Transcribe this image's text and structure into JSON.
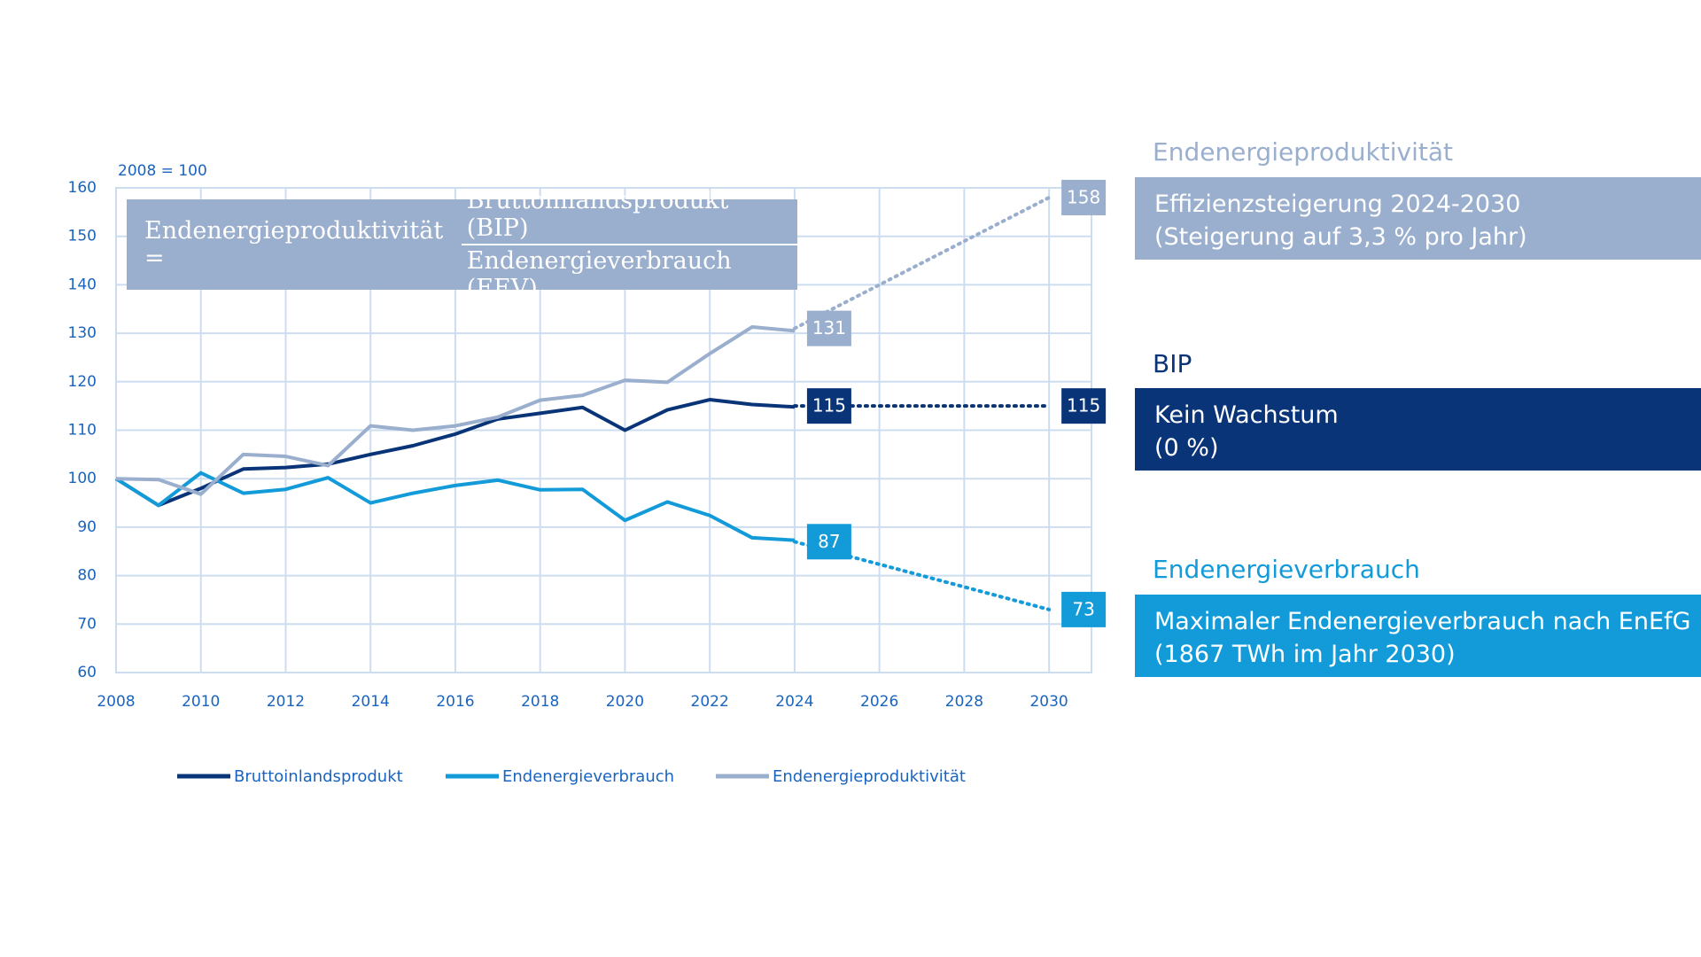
{
  "chart_data": {
    "type": "line",
    "index_note": "2008 = 100",
    "x": [
      2008,
      2009,
      2010,
      2011,
      2012,
      2013,
      2014,
      2015,
      2016,
      2017,
      2018,
      2019,
      2020,
      2021,
      2022,
      2023,
      2024
    ],
    "projection_x": [
      2024,
      2030
    ],
    "series": [
      {
        "name": "Bruttoinlandsprodukt",
        "color": "#0a3478",
        "values": [
          100,
          94.5,
          98,
          102,
          102.3,
          103,
          105,
          106.8,
          109.2,
          112.3,
          113.5,
          114.7,
          110,
          114.2,
          116.3,
          115.3,
          114.8
        ],
        "projection": [
          115,
          115
        ]
      },
      {
        "name": "Endenergieverbrauch",
        "color": "#139bd9",
        "values": [
          100,
          94.5,
          101.2,
          97,
          97.8,
          100.2,
          95,
          97,
          98.6,
          99.7,
          97.7,
          97.8,
          91.4,
          95.2,
          92.4,
          87.8,
          87.3
        ],
        "projection": [
          87,
          73
        ]
      },
      {
        "name": "Endenergieproduktivität",
        "color": "#9aaecd",
        "values": [
          100,
          99.8,
          96.8,
          105,
          104.6,
          102.7,
          110.9,
          110,
          110.9,
          112.7,
          116.2,
          117.2,
          120.3,
          119.9,
          125.8,
          131.3,
          130.5
        ],
        "projection": [
          131,
          158
        ]
      }
    ],
    "xlim": [
      2008,
      2031
    ],
    "xticks": [
      2008,
      2010,
      2012,
      2014,
      2016,
      2018,
      2020,
      2022,
      2024,
      2026,
      2028,
      2030
    ],
    "ylim": [
      60,
      160
    ],
    "yticks": [
      60,
      70,
      80,
      90,
      100,
      110,
      120,
      130,
      140,
      150,
      160
    ],
    "grid": true
  },
  "formula": {
    "left": "Endenergieproduktivität =",
    "numerator": "Bruttoinlandsprodukt (BIP)",
    "denominator": "Endenergieverbrauch (EEV)"
  },
  "panels": [
    {
      "heading": "Endenergieproduktivität",
      "lines": [
        "Effizienzsteigerung 2024-2030",
        "(Steigerung auf 3,3 % pro Jahr)"
      ]
    },
    {
      "heading": "BIP",
      "lines": [
        "Kein Wachstum",
        "(0 %)"
      ]
    },
    {
      "heading": "Endenergieverbrauch",
      "lines": [
        "Maximaler Endenergieverbrauch nach EnEfG",
        "(1867 TWh im Jahr 2030)"
      ]
    }
  ]
}
